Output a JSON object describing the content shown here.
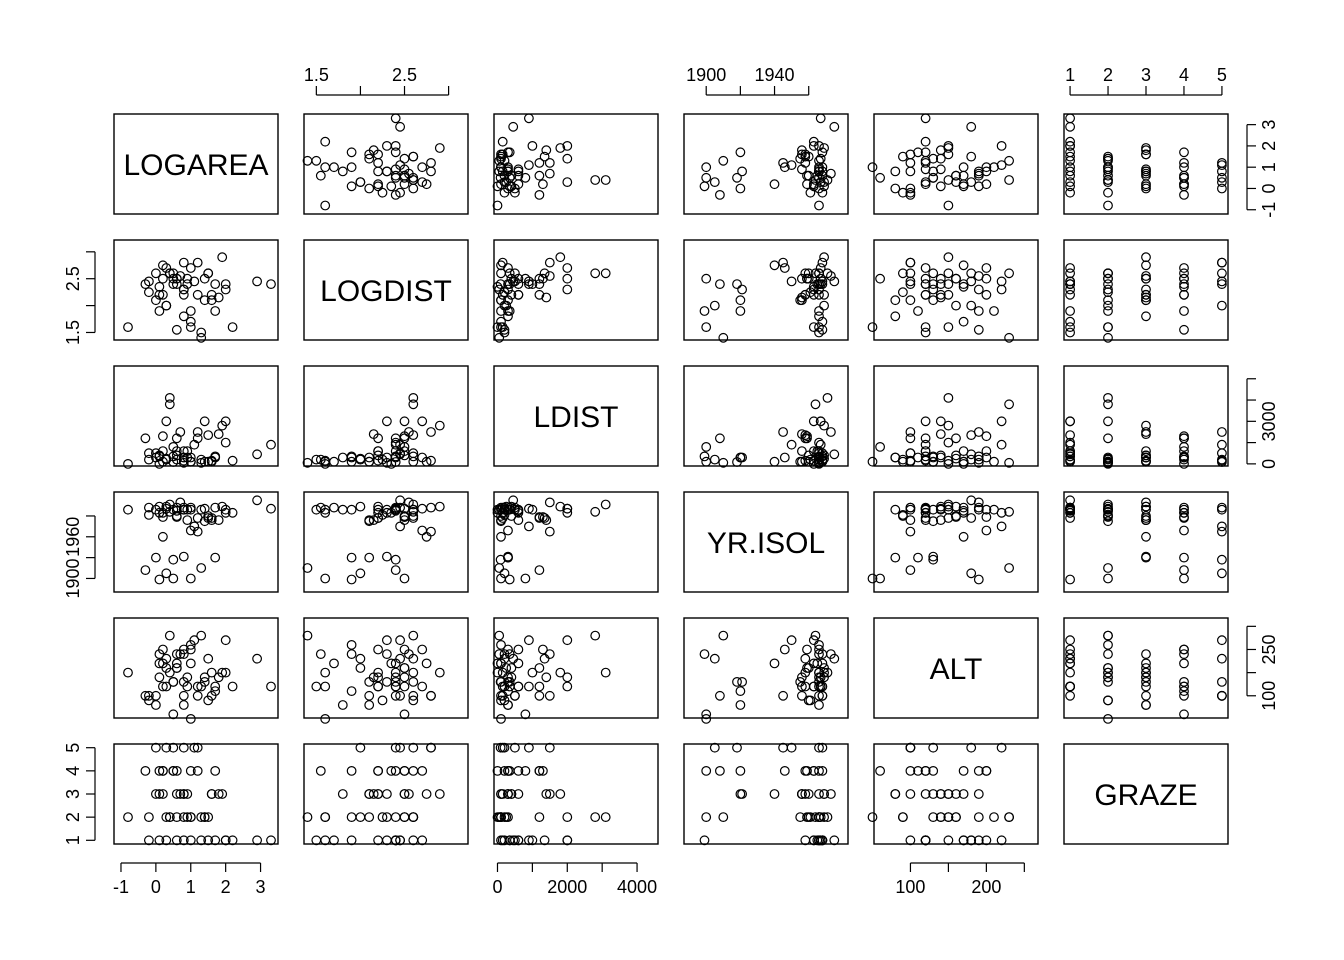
{
  "chart_data": {
    "type": "scatter",
    "subtype": "scatterplot-matrix",
    "variables": [
      {
        "name": "LOGAREA",
        "range": [
          -1.2,
          3.5
        ],
        "ticks": [
          -1,
          0,
          1,
          2,
          3
        ],
        "tick_labels": [
          "-1",
          "0",
          "1",
          "2",
          "3"
        ]
      },
      {
        "name": "LOGDIST",
        "range": [
          1.36,
          3.22
        ],
        "ticks": [
          1.5,
          2.0,
          2.5,
          3.0
        ],
        "tick_labels": [
          "1.5",
          "",
          "2.5",
          ""
        ]
      },
      {
        "name": "LDIST",
        "range": [
          -100,
          4600
        ],
        "ticks": [
          0,
          1000,
          2000,
          3000,
          4000
        ],
        "tick_labels": [
          "0",
          "",
          "2000",
          "",
          "4000"
        ],
        "right_tick_labels": [
          "0",
          "",
          "3000",
          ""
        ]
      },
      {
        "name": "YR.ISOL",
        "range": [
          1887,
          1983
        ],
        "ticks": [
          1900,
          1920,
          1940,
          1960
        ],
        "tick_labels": [
          "1900",
          "",
          "1940",
          ""
        ],
        "left_tick_labels": [
          "1900",
          "",
          "1960",
          ""
        ]
      },
      {
        "name": "ALT",
        "range": [
          52,
          268
        ],
        "ticks": [
          100,
          150,
          200,
          250
        ],
        "tick_labels": [
          "100",
          "",
          "200",
          ""
        ],
        "right_tick_labels": [
          "100",
          "",
          "250",
          ""
        ]
      },
      {
        "name": "GRAZE",
        "range": [
          0.84,
          5.16
        ],
        "ticks": [
          1,
          2,
          3,
          4,
          5
        ],
        "tick_labels": [
          "1",
          "2",
          "3",
          "4",
          "5"
        ]
      }
    ],
    "axis_labels_top": [
      1,
      3,
      5
    ],
    "axis_labels_bottom": [
      0,
      2,
      4
    ],
    "axis_labels_left": [
      1,
      3,
      5
    ],
    "axis_labels_right": [
      0,
      2,
      4
    ],
    "records": [
      [
        1.0,
        1.6,
        100,
        1900,
        50,
        2
      ],
      [
        0.0,
        2.1,
        300,
        1920,
        80,
        3
      ],
      [
        0.5,
        2.5,
        800,
        1900,
        60,
        4
      ],
      [
        0.8,
        2.3,
        50,
        1966,
        190,
        2
      ],
      [
        0.5,
        2.4,
        90,
        1918,
        130,
        5
      ],
      [
        1.2,
        2.8,
        1500,
        1945,
        100,
        5
      ],
      [
        0.9,
        2.5,
        600,
        1956,
        120,
        3
      ],
      [
        1.0,
        1.7,
        100,
        1968,
        170,
        1
      ],
      [
        1.7,
        1.9,
        300,
        1920,
        110,
        4
      ],
      [
        2.9,
        2.45,
        450,
        1975,
        180,
        1
      ],
      [
        1.3,
        1.4,
        50,
        1910,
        230,
        2
      ],
      [
        -0.8,
        1.6,
        0,
        1966,
        150,
        2
      ],
      [
        0.2,
        2.2,
        600,
        1963,
        120,
        4
      ],
      [
        1.5,
        2.6,
        1350,
        1958,
        180,
        1
      ],
      [
        0.3,
        2.0,
        200,
        1905,
        180,
        5
      ],
      [
        0.0,
        2.6,
        500,
        1966,
        100,
        5
      ],
      [
        0.7,
        2.55,
        1500,
        1973,
        190,
        3
      ],
      [
        -0.2,
        2.25,
        200,
        1961,
        90,
        2
      ],
      [
        0.6,
        1.55,
        200,
        1968,
        190,
        4
      ],
      [
        1.6,
        2.2,
        150,
        1958,
        150,
        3
      ],
      [
        1.4,
        2.5,
        2000,
        1967,
        140,
        2
      ],
      [
        0.1,
        1.9,
        350,
        1899,
        190,
        1
      ],
      [
        -0.3,
        2.4,
        1200,
        1908,
        100,
        4
      ],
      [
        0.4,
        2.6,
        3100,
        1971,
        150,
        2
      ],
      [
        0.1,
        2.35,
        0,
        1963,
        170,
        4
      ],
      [
        0.6,
        2.5,
        400,
        1960,
        160,
        3
      ],
      [
        2.0,
        2.4,
        1000,
        1966,
        150,
        1
      ],
      [
        1.1,
        2.45,
        900,
        1950,
        220,
        5
      ],
      [
        0.8,
        2.2,
        600,
        1966,
        200,
        1
      ],
      [
        1.9,
        2.9,
        1800,
        1969,
        150,
        3
      ],
      [
        1.8,
        2.15,
        1400,
        1956,
        140,
        3
      ],
      [
        1.0,
        2.7,
        300,
        1946,
        200,
        4
      ],
      [
        2.2,
        1.6,
        150,
        1963,
        120,
        1
      ],
      [
        0.4,
        2.6,
        2800,
        1964,
        230,
        2
      ],
      [
        0.8,
        2.3,
        300,
        1921,
        130,
        3
      ],
      [
        1.3,
        1.5,
        200,
        1966,
        120,
        1
      ],
      [
        0.2,
        2.75,
        100,
        1940,
        170,
        3
      ],
      [
        1.5,
        2.6,
        100,
        1960,
        90,
        2
      ],
      [
        3.3,
        2.4,
        900,
        1967,
        120,
        1
      ],
      [
        0.8,
        2.8,
        150,
        1968,
        100,
        5
      ],
      [
        2.0,
        2.3,
        2000,
        1963,
        220,
        1
      ],
      [
        0.6,
        2.5,
        1200,
        1959,
        160,
        2
      ],
      [
        0.5,
        2.6,
        350,
        1966,
        130,
        4
      ],
      [
        1.2,
        2.2,
        1200,
        1958,
        120,
        4
      ],
      [
        -0.2,
        2.45,
        500,
        1968,
        100,
        1
      ],
      [
        0.3,
        2.0,
        250,
        1969,
        160,
        2
      ],
      [
        1.6,
        2.1,
        100,
        1956,
        100,
        3
      ],
      [
        0.9,
        2.4,
        300,
        1966,
        140,
        2
      ],
      [
        0.6,
        2.4,
        600,
        1965,
        170,
        1
      ],
      [
        0.2,
        2.5,
        1300,
        1959,
        200,
        4
      ],
      [
        1.7,
        2.4,
        350,
        1968,
        120,
        1
      ],
      [
        0.1,
        2.2,
        400,
        1969,
        140,
        3
      ],
      [
        1.0,
        1.9,
        100,
        1966,
        210,
        2
      ],
      [
        1.4,
        2.1,
        100,
        1955,
        130,
        2
      ],
      [
        0.3,
        2.7,
        2000,
        1967,
        120,
        1
      ],
      [
        0.8,
        1.8,
        300,
        1966,
        80,
        3
      ]
    ]
  }
}
